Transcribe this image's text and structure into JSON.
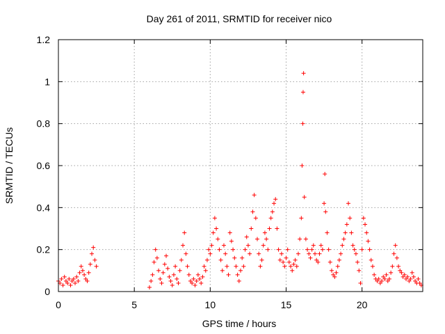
{
  "chart_data": {
    "type": "scatter",
    "title": "Day 261 of 2011, SRMTID for receiver nico",
    "xlabel": "GPS time / hours",
    "ylabel": "SRMTID / TECUs",
    "xlim": [
      0,
      24
    ],
    "ylim": [
      0,
      1.2
    ],
    "xticks": [
      0,
      5,
      10,
      15,
      20
    ],
    "xtick_labels": [
      "0",
      "5",
      "10",
      "15",
      "20"
    ],
    "yticks": [
      0,
      0.2,
      0.4,
      0.6,
      0.8,
      1,
      1.2
    ],
    "ytick_labels": [
      "0",
      "0.2",
      "0.4",
      "0.6",
      "0.8",
      "1",
      "1.2"
    ],
    "grid": true,
    "marker": "+",
    "color": "#ff0000",
    "series": [
      {
        "name": "SRMTID",
        "x": [
          0.0,
          0.1,
          0.2,
          0.3,
          0.4,
          0.5,
          0.6,
          0.7,
          0.8,
          0.9,
          1.0,
          1.1,
          1.2,
          1.3,
          1.4,
          1.5,
          1.6,
          1.7,
          1.8,
          1.9,
          2.0,
          2.1,
          2.2,
          2.3,
          2.4,
          2.5,
          6.0,
          6.1,
          6.2,
          6.3,
          6.4,
          6.5,
          6.6,
          6.7,
          6.8,
          6.9,
          7.0,
          7.1,
          7.2,
          7.3,
          7.4,
          7.5,
          7.6,
          7.7,
          7.8,
          7.9,
          8.0,
          8.1,
          8.2,
          8.3,
          8.4,
          8.5,
          8.6,
          8.7,
          8.8,
          8.9,
          9.0,
          9.1,
          9.2,
          9.3,
          9.4,
          9.5,
          9.6,
          9.7,
          9.8,
          9.9,
          10.0,
          10.1,
          10.2,
          10.3,
          10.4,
          10.5,
          10.6,
          10.7,
          10.8,
          10.9,
          11.0,
          11.1,
          11.2,
          11.3,
          11.4,
          11.5,
          11.6,
          11.7,
          11.8,
          11.9,
          12.0,
          12.1,
          12.2,
          12.3,
          12.4,
          12.5,
          12.6,
          12.7,
          12.8,
          12.9,
          13.0,
          13.1,
          13.2,
          13.3,
          13.4,
          13.5,
          13.6,
          13.7,
          13.8,
          13.9,
          14.0,
          14.1,
          14.2,
          14.3,
          14.4,
          14.5,
          14.6,
          14.7,
          14.8,
          14.9,
          15.0,
          15.1,
          15.2,
          15.3,
          15.4,
          15.5,
          15.6,
          15.7,
          15.8,
          15.9,
          16.0,
          16.05,
          16.1,
          16.12,
          16.15,
          16.2,
          16.3,
          16.4,
          16.5,
          16.6,
          16.7,
          16.8,
          16.9,
          17.0,
          17.1,
          17.2,
          17.3,
          17.4,
          17.5,
          17.55,
          17.6,
          17.7,
          17.8,
          17.9,
          18.0,
          18.1,
          18.2,
          18.3,
          18.4,
          18.5,
          18.6,
          18.7,
          18.8,
          18.9,
          19.0,
          19.1,
          19.2,
          19.3,
          19.4,
          19.5,
          19.6,
          19.7,
          19.8,
          19.9,
          20.0,
          20.1,
          20.2,
          20.3,
          20.4,
          20.5,
          20.6,
          20.7,
          20.8,
          20.9,
          21.0,
          21.1,
          21.2,
          21.3,
          21.4,
          21.5,
          21.6,
          21.7,
          21.8,
          21.9,
          22.0,
          22.1,
          22.2,
          22.3,
          22.4,
          22.5,
          22.6,
          22.7,
          22.8,
          22.9,
          23.0,
          23.1,
          23.2,
          23.3,
          23.4,
          23.5,
          23.6,
          23.7,
          23.8,
          23.9
        ],
        "y": [
          0.05,
          0.04,
          0.06,
          0.03,
          0.07,
          0.05,
          0.04,
          0.06,
          0.03,
          0.05,
          0.06,
          0.04,
          0.07,
          0.05,
          0.09,
          0.12,
          0.1,
          0.08,
          0.06,
          0.05,
          0.09,
          0.13,
          0.18,
          0.21,
          0.15,
          0.12,
          0.02,
          0.05,
          0.08,
          0.14,
          0.2,
          0.16,
          0.1,
          0.06,
          0.04,
          0.09,
          0.13,
          0.17,
          0.11,
          0.07,
          0.05,
          0.03,
          0.08,
          0.12,
          0.06,
          0.04,
          0.1,
          0.15,
          0.22,
          0.28,
          0.18,
          0.12,
          0.08,
          0.05,
          0.04,
          0.06,
          0.03,
          0.05,
          0.08,
          0.06,
          0.04,
          0.07,
          0.12,
          0.1,
          0.15,
          0.2,
          0.18,
          0.22,
          0.28,
          0.35,
          0.3,
          0.25,
          0.2,
          0.15,
          0.1,
          0.22,
          0.18,
          0.12,
          0.08,
          0.28,
          0.24,
          0.2,
          0.16,
          0.12,
          0.08,
          0.05,
          0.1,
          0.16,
          0.12,
          0.2,
          0.26,
          0.22,
          0.18,
          0.3,
          0.38,
          0.46,
          0.35,
          0.25,
          0.18,
          0.12,
          0.15,
          0.22,
          0.28,
          0.25,
          0.2,
          0.3,
          0.35,
          0.38,
          0.42,
          0.44,
          0.3,
          0.2,
          0.15,
          0.18,
          0.14,
          0.12,
          0.16,
          0.2,
          0.14,
          0.12,
          0.1,
          0.13,
          0.15,
          0.12,
          0.18,
          0.25,
          0.35,
          0.6,
          0.8,
          0.95,
          1.04,
          0.45,
          0.25,
          0.2,
          0.18,
          0.16,
          0.2,
          0.22,
          0.18,
          0.15,
          0.14,
          0.18,
          0.22,
          0.2,
          0.42,
          0.56,
          0.38,
          0.28,
          0.2,
          0.14,
          0.1,
          0.08,
          0.07,
          0.09,
          0.12,
          0.15,
          0.18,
          0.22,
          0.25,
          0.28,
          0.32,
          0.42,
          0.35,
          0.28,
          0.22,
          0.2,
          0.18,
          0.14,
          0.1,
          0.04,
          0.2,
          0.35,
          0.32,
          0.28,
          0.24,
          0.2,
          0.15,
          0.12,
          0.08,
          0.06,
          0.05,
          0.06,
          0.04,
          0.05,
          0.07,
          0.06,
          0.08,
          0.05,
          0.06,
          0.09,
          0.12,
          0.18,
          0.22,
          0.16,
          0.12,
          0.1,
          0.09,
          0.07,
          0.08,
          0.06,
          0.07,
          0.05,
          0.06,
          0.09,
          0.07,
          0.05,
          0.04,
          0.06,
          0.04,
          0.03
        ]
      }
    ]
  }
}
